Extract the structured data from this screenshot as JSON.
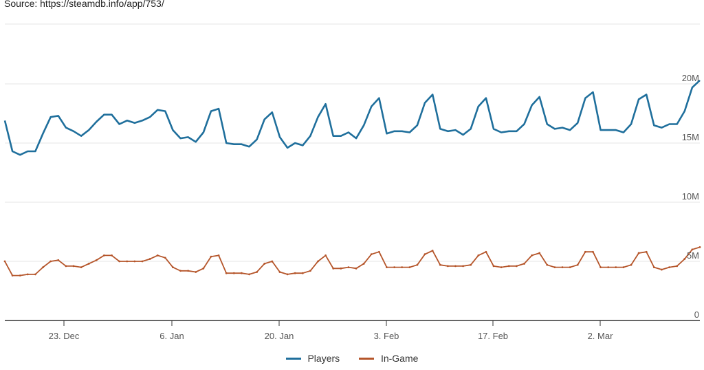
{
  "source_text": "Source: https://steamdb.info/app/753/",
  "chart_data": {
    "type": "line",
    "title": "",
    "xlabel": "",
    "ylabel": "",
    "ylim": [
      0,
      20000000
    ],
    "y_tick_labels": [
      "0",
      "5M",
      "10M",
      "15M",
      "20M"
    ],
    "y_ticks": [
      0,
      5000000,
      10000000,
      15000000,
      20000000
    ],
    "x_tick_labels": [
      "23. Dec",
      "6. Jan",
      "20. Jan",
      "3. Feb",
      "17. Feb",
      "2. Mar"
    ],
    "grid": true,
    "legend_position": "bottom-center",
    "series": [
      {
        "name": "Players",
        "color": "#1f6f9c",
        "values": [
          16.9,
          14.3,
          14.0,
          14.3,
          14.3,
          15.8,
          17.2,
          17.3,
          16.3,
          16.0,
          15.6,
          16.1,
          16.8,
          17.4,
          17.4,
          16.6,
          16.9,
          16.7,
          16.9,
          17.2,
          17.8,
          17.7,
          16.1,
          15.4,
          15.5,
          15.1,
          15.9,
          17.7,
          17.9,
          15.0,
          14.9,
          14.9,
          14.7,
          15.3,
          17.0,
          17.6,
          15.5,
          14.6,
          15.0,
          14.8,
          15.6,
          17.2,
          18.3,
          15.6,
          15.6,
          15.9,
          15.4,
          16.5,
          18.1,
          18.8,
          15.8,
          16.0,
          16.0,
          15.9,
          16.5,
          18.4,
          19.1,
          16.2,
          16.0,
          16.1,
          15.7,
          16.2,
          18.1,
          18.8,
          16.2,
          15.9,
          16.0,
          16.0,
          16.6,
          18.2,
          18.9,
          16.6,
          16.2,
          16.3,
          16.1,
          16.7,
          18.8,
          19.3,
          16.1,
          16.1,
          16.1,
          15.9,
          16.6,
          18.7,
          19.1,
          16.5,
          16.3,
          16.6,
          16.6,
          17.7,
          19.7,
          20.3
        ]
      },
      {
        "name": "In-Game",
        "color": "#b5552a",
        "values": [
          5.0,
          3.8,
          3.8,
          3.9,
          3.9,
          4.5,
          5.0,
          5.1,
          4.6,
          4.6,
          4.5,
          4.8,
          5.1,
          5.5,
          5.5,
          5.0,
          5.0,
          5.0,
          5.0,
          5.2,
          5.5,
          5.3,
          4.5,
          4.2,
          4.2,
          4.1,
          4.4,
          5.4,
          5.5,
          4.0,
          4.0,
          4.0,
          3.9,
          4.1,
          4.8,
          5.0,
          4.1,
          3.9,
          4.0,
          4.0,
          4.2,
          5.0,
          5.5,
          4.4,
          4.4,
          4.5,
          4.4,
          4.8,
          5.6,
          5.8,
          4.5,
          4.5,
          4.5,
          4.5,
          4.7,
          5.6,
          5.9,
          4.7,
          4.6,
          4.6,
          4.6,
          4.7,
          5.5,
          5.8,
          4.6,
          4.5,
          4.6,
          4.6,
          4.8,
          5.5,
          5.7,
          4.7,
          4.5,
          4.5,
          4.5,
          4.7,
          5.8,
          5.8,
          4.5,
          4.5,
          4.5,
          4.5,
          4.7,
          5.7,
          5.8,
          4.5,
          4.3,
          4.5,
          4.6,
          5.2,
          6.0,
          6.2
        ]
      }
    ]
  }
}
